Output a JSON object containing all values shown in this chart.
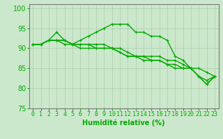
{
  "title": "",
  "xlabel": "Humidité relative (%)",
  "ylabel": "",
  "x": [
    0,
    1,
    2,
    3,
    4,
    5,
    6,
    7,
    8,
    9,
    10,
    11,
    12,
    13,
    14,
    15,
    16,
    17,
    18,
    19,
    20,
    21,
    22,
    23
  ],
  "line_max": [
    91,
    91,
    92,
    94,
    92,
    91,
    92,
    93,
    94,
    95,
    96,
    96,
    96,
    94,
    94,
    93,
    93,
    92,
    88,
    87,
    85,
    83,
    81,
    83
  ],
  "line_mean": [
    91,
    91,
    92,
    92,
    92,
    91,
    91,
    91,
    90,
    90,
    90,
    89,
    88,
    88,
    88,
    88,
    88,
    87,
    87,
    86,
    85,
    85,
    84,
    83
  ],
  "line_min": [
    91,
    91,
    92,
    92,
    91,
    91,
    90,
    90,
    90,
    90,
    90,
    89,
    88,
    88,
    87,
    87,
    87,
    86,
    85,
    85,
    85,
    83,
    81,
    83
  ],
  "line_extra": [
    91,
    91,
    92,
    92,
    92,
    91,
    91,
    91,
    91,
    91,
    90,
    90,
    89,
    88,
    88,
    87,
    87,
    86,
    86,
    85,
    85,
    83,
    82,
    83
  ],
  "line_color": "#00aa00",
  "bg_color": "#cce8cc",
  "grid_color": "#aaccaa",
  "ylim": [
    75,
    101
  ],
  "yticks": [
    75,
    80,
    85,
    90,
    95,
    100
  ],
  "xlim": [
    -0.5,
    23.5
  ],
  "xlabel_fontsize": 7,
  "tick_fontsize": 6,
  "line_width": 1.0,
  "marker": "+",
  "marker_size": 3
}
